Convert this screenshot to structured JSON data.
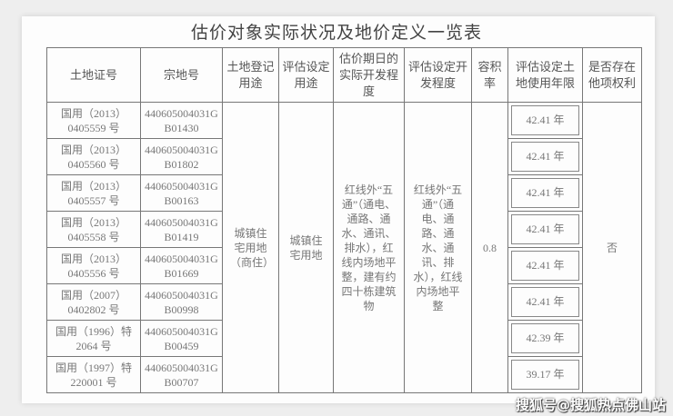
{
  "title": "估价对象实际状况及地价定义一览表",
  "headers": [
    "土地证号",
    "宗地号",
    "土地登记用途",
    "评估设定用途",
    "估价期日的实际开发程度",
    "评估设定开发程度",
    "容积率",
    "评估设定土地使用年限",
    "是否存在他项权利"
  ],
  "rows": [
    {
      "cert": "国用（2013）0405559 号",
      "parcel": "440605004031GB01430",
      "years": "42.41 年"
    },
    {
      "cert": "国用（2013）0405560 号",
      "parcel": "440605004031GB01802",
      "years": "42.41 年"
    },
    {
      "cert": "国用（2013）0405557 号",
      "parcel": "440605004031GB00163",
      "years": "42.41 年"
    },
    {
      "cert": "国用（2013）0405558 号",
      "parcel": "440605004031GB01419",
      "years": "42.41 年"
    },
    {
      "cert": "国用（2013）0405556 号",
      "parcel": "440605004031GB01669",
      "years": "42.41 年"
    },
    {
      "cert": "国用（2007）0402802 号",
      "parcel": "440605004031GB00998",
      "years": "42.41 年"
    },
    {
      "cert": "国用（1996）特 2064 号",
      "parcel": "440605004031GB00459",
      "years": "42.39 年"
    },
    {
      "cert": "国用（1997）特 220001 号",
      "parcel": "440605004031GB00707",
      "years": "39.17 年"
    }
  ],
  "shared": {
    "registered_use": "城镇住宅用地（商住）",
    "assessed_use": "城镇住宅用地",
    "actual_development": "红线外“五通”（通电、通路、通水、通讯、排水），红线内场地平整，建有约四十栋建筑物",
    "assessed_development": "红线外“五通”（通电、通路、通水、通讯、排水），红线内场地平整",
    "plot_ratio": "0.8",
    "other_rights": "否"
  },
  "watermark": "搜狐号@搜狐热点佛山站"
}
